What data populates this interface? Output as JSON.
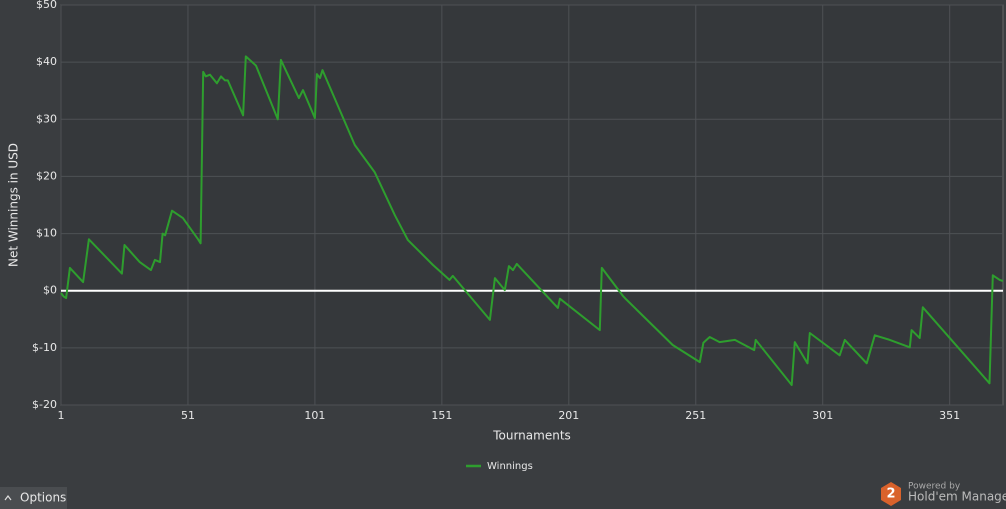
{
  "chart_data": {
    "type": "line",
    "xlabel": "Tournaments",
    "ylabel": "Net Winnings in USD",
    "x": [
      1,
      2,
      3,
      4.5,
      9.7,
      12,
      25,
      26,
      32,
      36.4,
      38,
      40,
      41,
      42,
      44.7,
      49,
      55,
      56,
      57,
      58,
      59.7,
      62.4,
      64,
      65.6,
      66.7,
      72.7,
      73.8,
      77.8,
      86.4,
      87.6,
      94.7,
      96.3,
      101,
      101.8,
      103,
      104,
      116.7,
      124.6,
      132.5,
      137.6,
      147.5,
      154,
      155.3,
      169.9,
      171.9,
      175.8,
      177.4,
      179,
      180.5,
      196.7,
      197.5,
      213.2,
      214,
      222.3,
      223.8,
      241.9,
      252.6,
      254,
      256.5,
      260.4,
      266.4,
      274,
      274.6,
      288.8,
      290,
      295,
      295.9,
      307.7,
      309.7,
      318.3,
      321.5,
      327.4,
      335.3,
      336,
      339.2,
      340.4,
      366.7,
      368,
      370.7,
      372
    ],
    "series": [
      {
        "name": "Winnings",
        "color": "#2e9e2e",
        "values": [
          -0.4,
          -1,
          -1.3,
          4,
          1.5,
          9,
          3,
          8,
          5,
          3.6,
          5.4,
          5,
          10,
          9.7,
          14,
          12.7,
          9,
          8.3,
          38.3,
          37.5,
          37.8,
          36.3,
          37.5,
          36.8,
          36.8,
          30.7,
          41,
          39.4,
          30,
          40.4,
          33.7,
          35.1,
          30.2,
          37.9,
          37.2,
          38.6,
          25.5,
          20.7,
          13.2,
          8.9,
          4.5,
          1.9,
          2.6,
          -5.1,
          2.2,
          0.1,
          4.3,
          3.6,
          4.7,
          -3,
          -1.4,
          -6.9,
          4,
          -0.9,
          -1.6,
          -9.5,
          -12.5,
          -9.1,
          -8.1,
          -9,
          -8.6,
          -10.4,
          -8.6,
          -16.5,
          -9,
          -12.7,
          -7.4,
          -11.3,
          -8.6,
          -12.7,
          -7.8,
          -8.6,
          -9.9,
          -6.9,
          -8.3,
          -2.9,
          -16.2,
          2.7,
          1.9,
          1.7
        ]
      }
    ],
    "xlim": [
      1,
      372
    ],
    "xticks": [
      1,
      51,
      101,
      151,
      201,
      251,
      301,
      351
    ],
    "ylim": [
      -20,
      50
    ],
    "yticks": [
      {
        "value": -20,
        "label": "$-20"
      },
      {
        "value": -10,
        "label": "$-10"
      },
      {
        "value": 0,
        "label": "$0"
      },
      {
        "value": 10,
        "label": "$10"
      },
      {
        "value": 20,
        "label": "$20"
      },
      {
        "value": 30,
        "label": "$30"
      },
      {
        "value": 40,
        "label": "$40"
      },
      {
        "value": 50,
        "label": "$50"
      }
    ],
    "grid": true,
    "zero_line_color": "#ffffff",
    "legend": "bottom"
  },
  "ui": {
    "options_button": "Options",
    "branding": {
      "badge": "2",
      "powered_by": "Powered by",
      "product": "Hold'em Manager"
    }
  }
}
